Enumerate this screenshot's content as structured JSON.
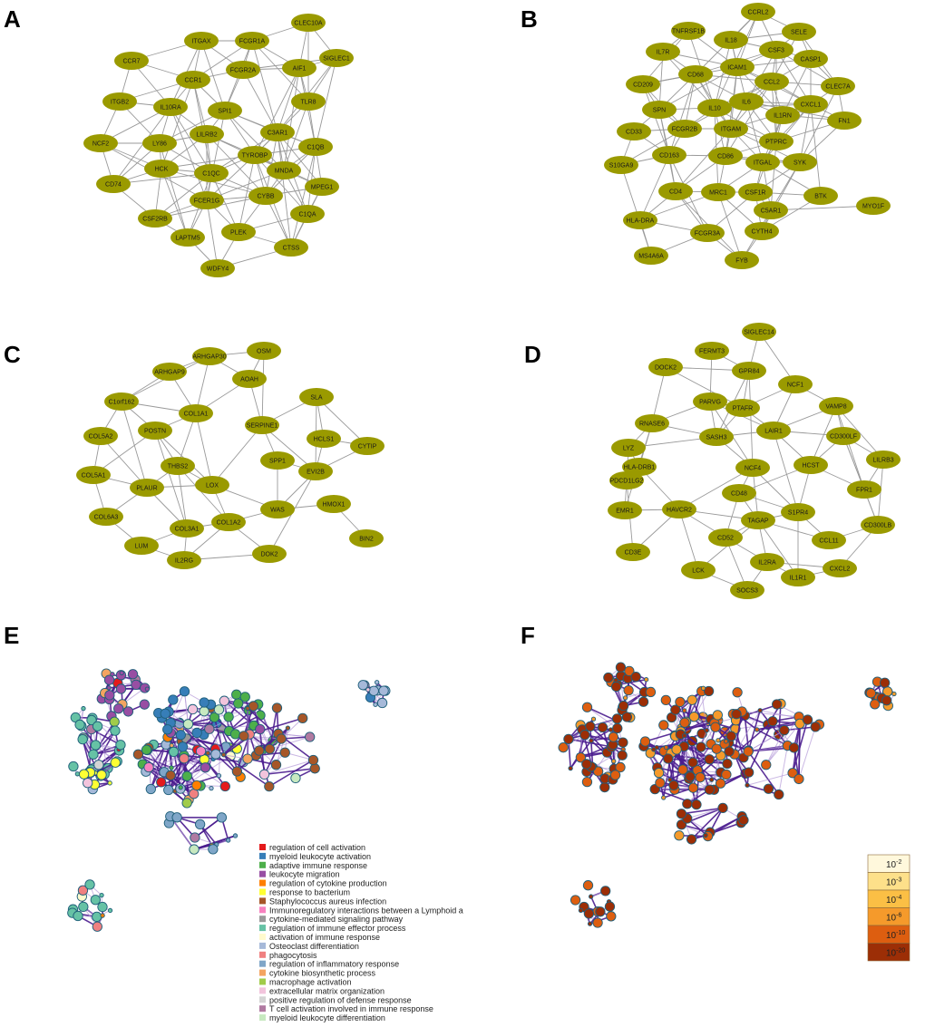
{
  "panels": [
    {
      "letter": "A",
      "nodes": [
        "CLEC10A",
        "ITGAX",
        "FCGR1A",
        "CCR7",
        "SIGLEC1",
        "AIF1",
        "FCGR2A",
        "CCR1",
        "ITGB2",
        "IL10RA",
        "SPI1",
        "TLR8",
        "LILRB2",
        "C3AR1",
        "NCF2",
        "LY86",
        "C1QB",
        "TYROBP",
        "HCK",
        "C1QC",
        "MNDA",
        "CD74",
        "MPEG1",
        "FCER1G",
        "CYBB",
        "CSF2RB",
        "C1QA",
        "LAPTM5",
        "PLEK",
        "CTSS",
        "WDFY4"
      ]
    },
    {
      "letter": "B",
      "nodes": [
        "CCRL2",
        "TNFRSF1B",
        "SELE",
        "IL18",
        "CSF3",
        "IL7R",
        "CASP1",
        "ICAM1",
        "CD68",
        "CCL2",
        "CLEC7A",
        "CD209",
        "IL10",
        "IL6",
        "CXCL1",
        "SPN",
        "IL1RN",
        "FN1",
        "CD33",
        "FCGR2B",
        "ITGAM",
        "PTPRC",
        "CD163",
        "CD86",
        "S10GA9",
        "ITGAL",
        "SYK",
        "CD4",
        "MRC1",
        "CSF1R",
        "BTK",
        "MYO1F",
        "HLA-DRA",
        "C5AR1",
        "FCGR3A",
        "CYTH4",
        "MS4A6A",
        "FYB"
      ]
    },
    {
      "letter": "C",
      "nodes": [
        "OSM",
        "ARHGAP30",
        "ARHGAP9",
        "AOAH",
        "C1orf162",
        "SLA",
        "COL1A1",
        "SERPINE1",
        "COL5A2",
        "POSTN",
        "HCLS1",
        "CYTIP",
        "SPP1",
        "THBS2",
        "COL5A1",
        "EVI2B",
        "PLAUR",
        "LOX",
        "HMOX1",
        "COL6A3",
        "COL1A2",
        "COL3A1",
        "WAS",
        "LUM",
        "BIN2",
        "IL2RG",
        "DOK2"
      ]
    },
    {
      "letter": "D",
      "nodes": [
        "SIGLEC14",
        "FERMT3",
        "DOCK2",
        "GPR84",
        "NCF1",
        "PARVG",
        "PTAFR",
        "VAMP8",
        "RNASE6",
        "LAIR1",
        "SASH3",
        "CD300LF",
        "LYZ",
        "LILRB3",
        "HCST",
        "NCF4",
        "HLA-DRB1",
        "PDCD1LG2",
        "CD48",
        "FPR1",
        "EMR1",
        "HAVCR2",
        "S1PR4",
        "TAGAP",
        "CD300LB",
        "CD52",
        "CCL11",
        "CD3E",
        "IL2RA",
        "LCK",
        "CXCL2",
        "IL1R1",
        "SOCS3"
      ]
    },
    {
      "letter": "E"
    },
    {
      "letter": "F"
    }
  ],
  "legend": [
    {
      "label": "regulation of cell activation",
      "color": "#e41a1c"
    },
    {
      "label": "myeloid leukocyte activation",
      "color": "#377eb8"
    },
    {
      "label": "adaptive immune response",
      "color": "#4daf4a"
    },
    {
      "label": "leukocyte migration",
      "color": "#984ea3"
    },
    {
      "label": "regulation of cytokine production",
      "color": "#ff7f00"
    },
    {
      "label": "response to bacterium",
      "color": "#ffff33"
    },
    {
      "label": "Staphylococcus aureus infection",
      "color": "#a65628"
    },
    {
      "label": "Immunoregulatory interactions between a Lymphoid a",
      "color": "#f781bf"
    },
    {
      "label": "cytokine-mediated signaling pathway",
      "color": "#999999"
    },
    {
      "label": "regulation of immune effector process",
      "color": "#66c2a5"
    },
    {
      "label": "activation of immune response",
      "color": "#fffacd"
    },
    {
      "label": "Osteoclast differentiation",
      "color": "#a6b9d9"
    },
    {
      "label": "phagocytosis",
      "color": "#f08080"
    },
    {
      "label": "regulation of inflammatory response",
      "color": "#7fa6c8"
    },
    {
      "label": "cytokine biosynthetic process",
      "color": "#f4a460"
    },
    {
      "label": "macrophage activation",
      "color": "#a1cc4a"
    },
    {
      "label": "extracellular matrix organization",
      "color": "#f2c4dc"
    },
    {
      "label": "positive regulation of defense response",
      "color": "#d4d4d4"
    },
    {
      "label": "T cell activation involved in immune response",
      "color": "#b07aa1"
    },
    {
      "label": "myeloid leukocyte differentiation",
      "color": "#c7e9c0"
    }
  ],
  "pvalue_scale": [
    {
      "exp": "-2",
      "color": "#fff8dc"
    },
    {
      "exp": "-3",
      "color": "#fde08a"
    },
    {
      "exp": "-4",
      "color": "#fbbf45"
    },
    {
      "exp": "-6",
      "color": "#f59a2b"
    },
    {
      "exp": "-10",
      "color": "#dd5e10"
    },
    {
      "exp": "-20",
      "color": "#9c2e06"
    }
  ],
  "colors": {
    "node_fill": "#9a9a00",
    "edge": "#999999",
    "edge_dark": "#4b1c8f",
    "edge_light": "#b49ad8"
  }
}
